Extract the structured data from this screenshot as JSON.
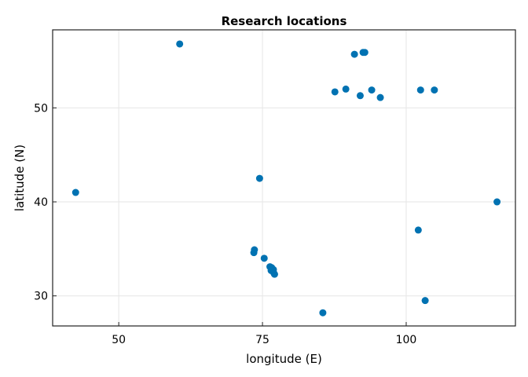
{
  "chart_data": {
    "type": "scatter",
    "title": "Research locations",
    "xlabel": "longitude (E)",
    "ylabel": "latitude (N)",
    "xlim": [
      38.5,
      119
    ],
    "ylim": [
      26.8,
      58.3
    ],
    "xticks": [
      50,
      75,
      100
    ],
    "yticks": [
      30,
      40,
      50
    ],
    "grid": true,
    "marker_color": "#0072b2",
    "points": [
      {
        "x": 60.6,
        "y": 56.8
      },
      {
        "x": 42.5,
        "y": 41.0
      },
      {
        "x": 74.5,
        "y": 42.5
      },
      {
        "x": 73.6,
        "y": 34.9
      },
      {
        "x": 73.5,
        "y": 34.6
      },
      {
        "x": 75.3,
        "y": 34.0
      },
      {
        "x": 76.3,
        "y": 33.1
      },
      {
        "x": 76.6,
        "y": 33.0
      },
      {
        "x": 76.9,
        "y": 32.8
      },
      {
        "x": 76.5,
        "y": 32.7
      },
      {
        "x": 77.0,
        "y": 32.4
      },
      {
        "x": 77.1,
        "y": 32.3
      },
      {
        "x": 85.5,
        "y": 28.2
      },
      {
        "x": 87.6,
        "y": 51.7
      },
      {
        "x": 89.5,
        "y": 52.0
      },
      {
        "x": 91.0,
        "y": 55.7
      },
      {
        "x": 92.5,
        "y": 55.9
      },
      {
        "x": 92.8,
        "y": 55.9
      },
      {
        "x": 92.0,
        "y": 51.3
      },
      {
        "x": 94.0,
        "y": 51.9
      },
      {
        "x": 95.5,
        "y": 51.1
      },
      {
        "x": 102.5,
        "y": 51.9
      },
      {
        "x": 104.9,
        "y": 51.9
      },
      {
        "x": 102.1,
        "y": 37.0
      },
      {
        "x": 103.3,
        "y": 29.5
      },
      {
        "x": 115.8,
        "y": 40.0
      }
    ]
  }
}
